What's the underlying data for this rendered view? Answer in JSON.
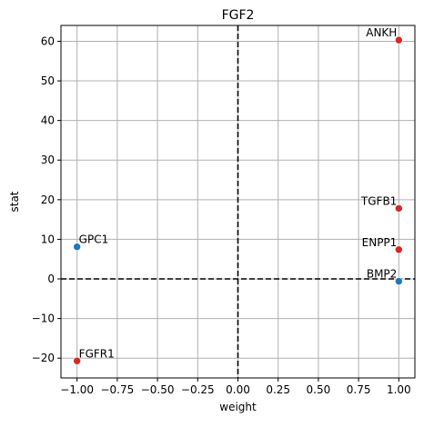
{
  "chart_data": {
    "type": "scatter",
    "title": "FGF2",
    "xlabel": "weight",
    "ylabel": "stat",
    "xlim": [
      -1.1,
      1.1
    ],
    "ylim": [
      -25,
      64
    ],
    "xticks": [
      -1.0,
      -0.75,
      -0.5,
      -0.25,
      0.0,
      0.25,
      0.5,
      0.75,
      1.0
    ],
    "xtick_labels": [
      "−1.00",
      "−0.75",
      "−0.50",
      "−0.25",
      "0.00",
      "0.25",
      "0.50",
      "0.75",
      "1.00"
    ],
    "yticks": [
      -20,
      -10,
      0,
      10,
      20,
      30,
      40,
      50,
      60
    ],
    "ytick_labels": [
      "−20",
      "−10",
      "0",
      "10",
      "20",
      "30",
      "40",
      "50",
      "60"
    ],
    "grid": true,
    "reference_lines": {
      "x": 0,
      "y": 0,
      "style": "dashed",
      "color": "#000000"
    },
    "colors": {
      "positive": "#d62728",
      "negative": "#1f77b4"
    },
    "points": [
      {
        "label": "ANKH",
        "x": 1.0,
        "y": 60.3,
        "color": "positive",
        "label_side": "left"
      },
      {
        "label": "TGFB1",
        "x": 1.0,
        "y": 17.8,
        "color": "positive",
        "label_side": "left"
      },
      {
        "label": "ENPP1",
        "x": 1.0,
        "y": 7.4,
        "color": "positive",
        "label_side": "left"
      },
      {
        "label": "BMP2",
        "x": 1.0,
        "y": -0.6,
        "color": "negative",
        "label_side": "left"
      },
      {
        "label": "GPC1",
        "x": -1.0,
        "y": 8.1,
        "color": "negative",
        "label_side": "right"
      },
      {
        "label": "FGFR1",
        "x": -1.0,
        "y": -20.7,
        "color": "positive",
        "label_side": "right"
      }
    ]
  }
}
